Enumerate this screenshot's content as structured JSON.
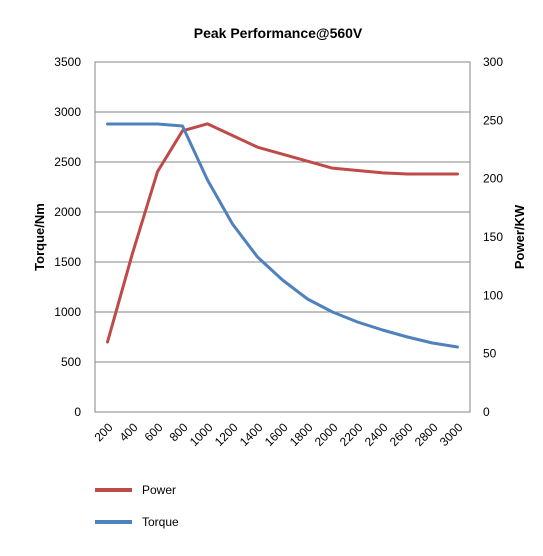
{
  "chart_data": {
    "type": "line",
    "title": "Peak Performance@560V",
    "xlabel": "",
    "ylabel_left": "Torque/Nm",
    "ylabel_right": "Power/KW",
    "categories": [
      "200",
      "400",
      "600",
      "800",
      "1000",
      "1200",
      "1400",
      "1600",
      "1800",
      "2000",
      "2200",
      "2400",
      "2600",
      "2800",
      "3000"
    ],
    "y_left": {
      "min": 0,
      "max": 3500,
      "ticks": [
        "0",
        "500",
        "1000",
        "1500",
        "2000",
        "2500",
        "3000",
        "3500"
      ]
    },
    "y_right": {
      "min": 0,
      "max": 300,
      "ticks": [
        "0",
        "50",
        "100",
        "150",
        "200",
        "250",
        "300"
      ]
    },
    "grid": "horizontal",
    "legend_position": "bottom-left",
    "series": [
      {
        "name": "Power",
        "axis": "right",
        "color": "#BE4B48",
        "values": [
          60,
          136,
          206,
          241,
          247,
          237,
          227,
          221,
          215,
          209,
          207,
          205,
          204,
          204,
          204
        ]
      },
      {
        "name": "Torque",
        "axis": "left",
        "color": "#4F81BD",
        "values": [
          2880,
          2880,
          2880,
          2860,
          2320,
          1880,
          1550,
          1320,
          1130,
          1000,
          900,
          820,
          750,
          690,
          650
        ]
      }
    ]
  }
}
